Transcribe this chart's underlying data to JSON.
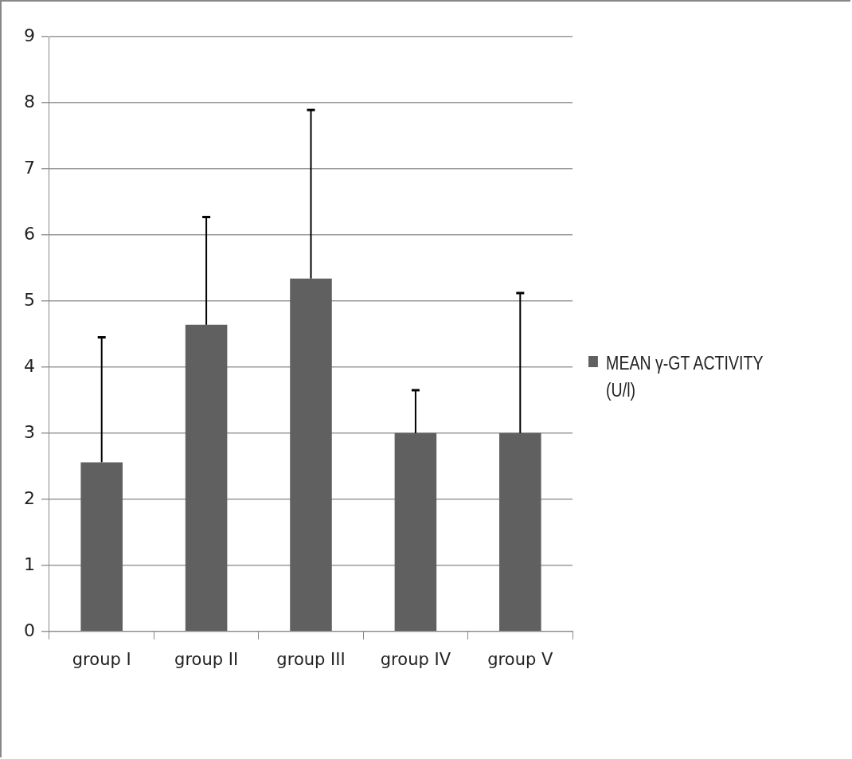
{
  "chart_data": {
    "type": "bar",
    "categories": [
      "group I",
      "group II",
      "group III",
      "group IV",
      "group V"
    ],
    "series": [
      {
        "name": "MEAN γ-GT ACTIVITY (U/l)",
        "color": "#606060",
        "values": [
          2.56,
          4.64,
          5.34,
          3.0,
          3.0
        ],
        "errors": [
          [
            2.56,
            4.45
          ],
          [
            4.64,
            6.27
          ],
          [
            5.34,
            7.89
          ],
          [
            3.0,
            3.65
          ],
          [
            3.0,
            5.12
          ]
        ]
      }
    ],
    "ylim": [
      0,
      9
    ],
    "yticks": [
      0,
      1,
      2,
      3,
      4,
      5,
      6,
      7,
      8,
      9
    ],
    "grid": "y",
    "legend": "right"
  }
}
